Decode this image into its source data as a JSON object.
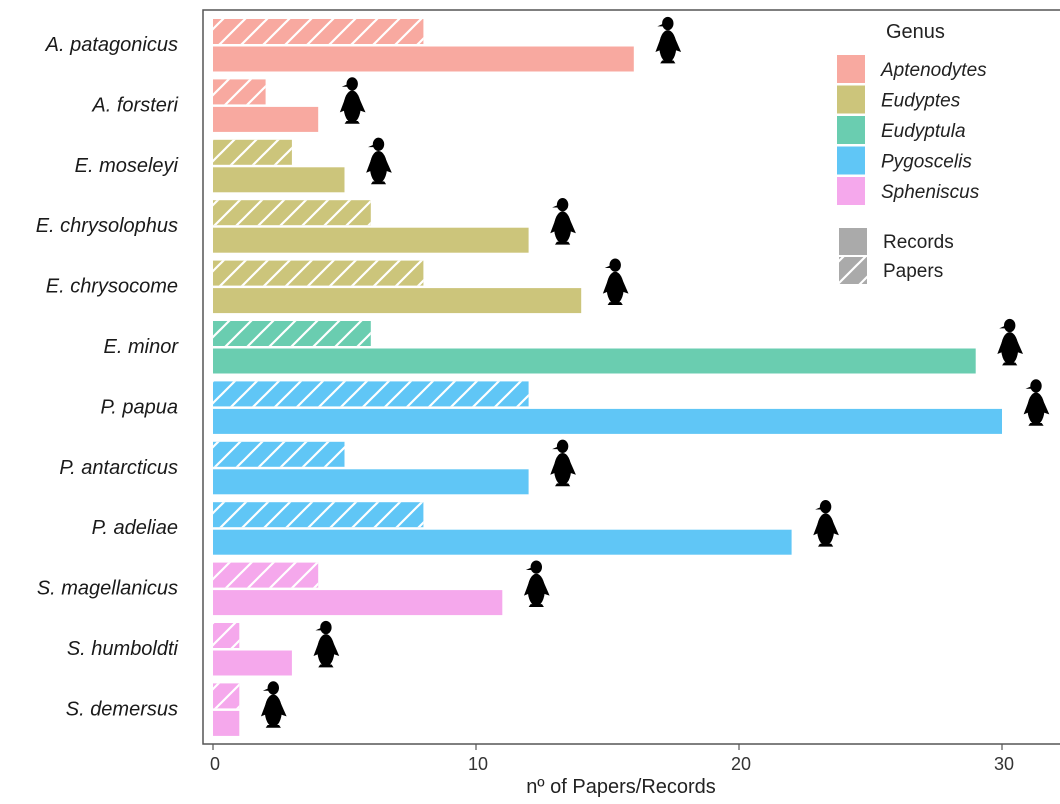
{
  "chart_data": {
    "type": "bar",
    "xlabel": "nº of Papers/Records",
    "xlim": [
      0,
      32
    ],
    "xticks": [
      0,
      10,
      20,
      30
    ],
    "orientation": "horizontal",
    "grid": false,
    "legend_placement": "top-right",
    "categories": [
      "A. patagonicus",
      "A. forsteri",
      "E. moseleyi",
      "E. chrysolophus",
      "E. chrysocome",
      "E. minor",
      "P. papua",
      "P. antarcticus",
      "P. adeliae",
      "S. magellanicus",
      "S. humboldti",
      "S. demersus"
    ],
    "category_genus": [
      "Aptenodytes",
      "Aptenodytes",
      "Eudyptes",
      "Eudyptes",
      "Eudyptes",
      "Eudyptula",
      "Pygoscelis",
      "Pygoscelis",
      "Pygoscelis",
      "Spheniscus",
      "Spheniscus",
      "Spheniscus"
    ],
    "series": [
      {
        "name": "Papers",
        "pattern": "hatched",
        "values": [
          8,
          2,
          3,
          6,
          8,
          6,
          12,
          5,
          8,
          4,
          1,
          1
        ]
      },
      {
        "name": "Records",
        "pattern": "solid",
        "values": [
          16,
          4,
          5,
          12,
          14,
          29,
          30,
          12,
          22,
          11,
          3,
          1
        ]
      }
    ],
    "legend_genus": {
      "title": "Genus",
      "items": [
        {
          "label": "Aptenodytes",
          "color": "#F8A9A0"
        },
        {
          "label": "Eudyptes",
          "color": "#CCC57B"
        },
        {
          "label": "Eudyptula",
          "color": "#6ACDB0"
        },
        {
          "label": "Pygoscelis",
          "color": "#60C6F6"
        },
        {
          "label": "Spheniscus",
          "color": "#F5A8EC"
        }
      ]
    },
    "legend_type": {
      "items": [
        {
          "label": "Records",
          "pattern": "solid"
        },
        {
          "label": "Papers",
          "pattern": "hatched"
        }
      ]
    },
    "icons": [
      "penguin-icon"
    ]
  }
}
